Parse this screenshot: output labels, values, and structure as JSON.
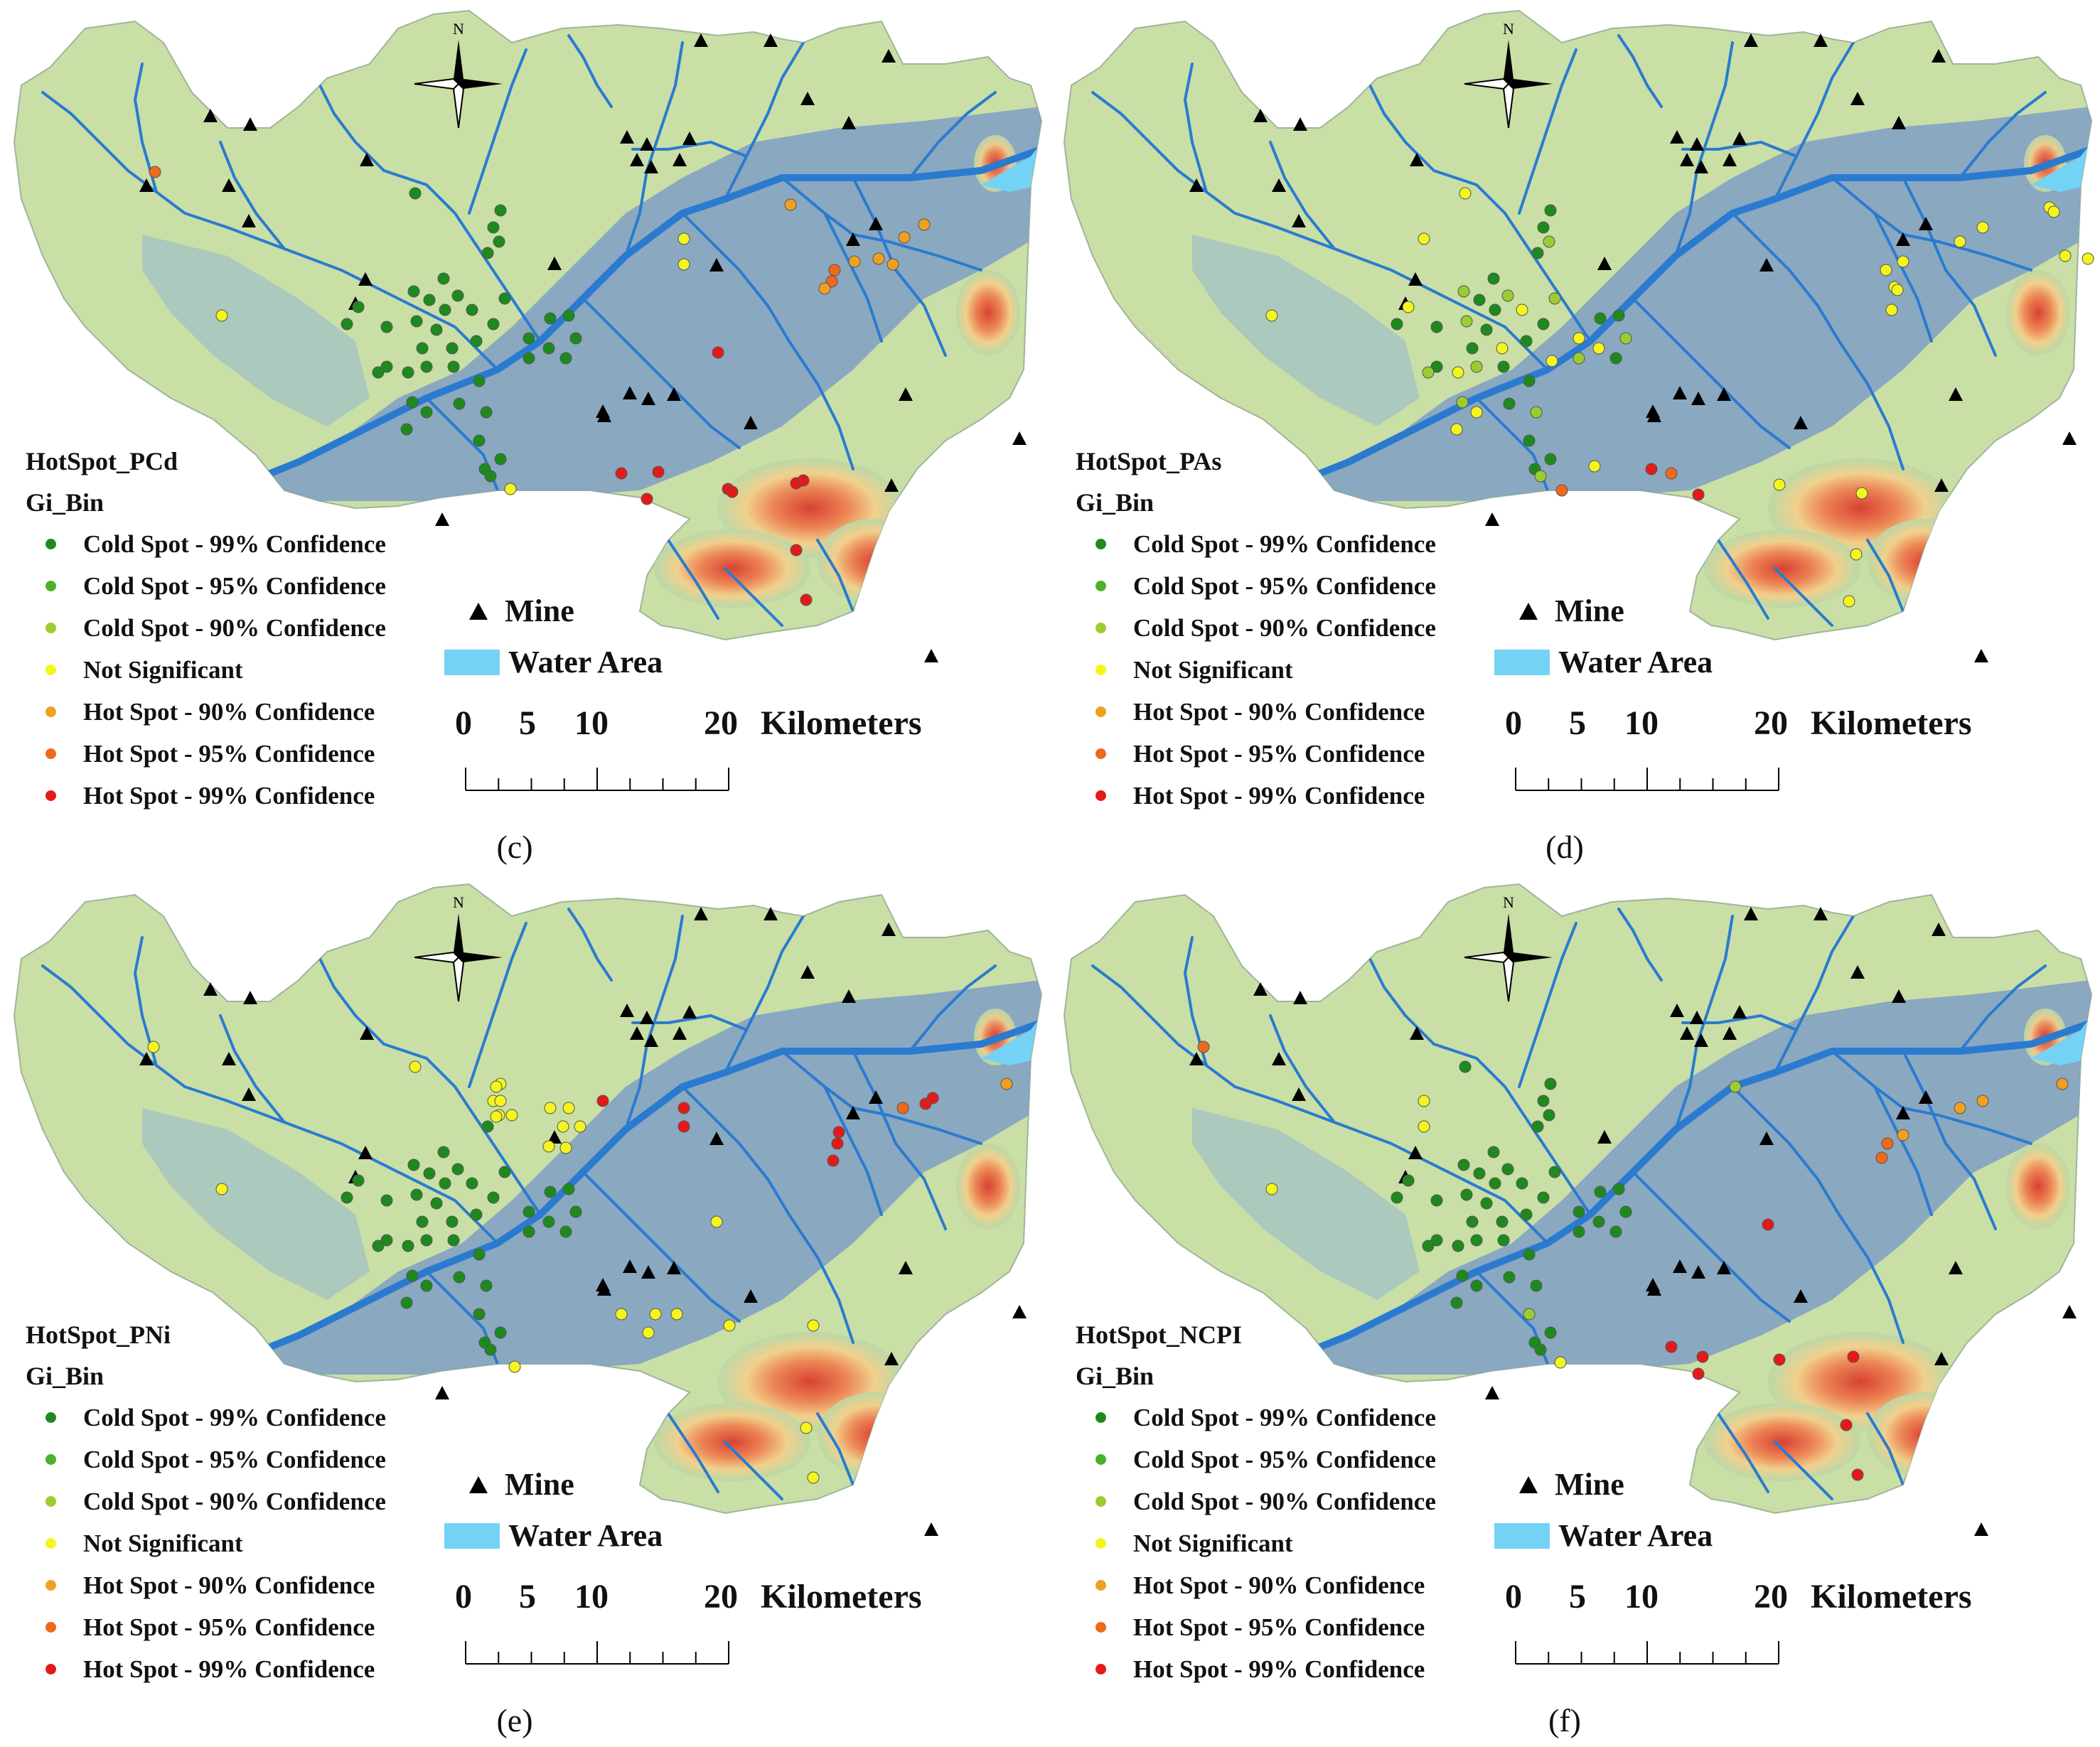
{
  "north_label": "N",
  "legend": {
    "subtitle": "Gi_Bin",
    "items": [
      {
        "label": "Cold Spot - 99% Confidence",
        "color": "#1e8a1e"
      },
      {
        "label": "Cold Spot - 95% Confidence",
        "color": "#4cb02a"
      },
      {
        "label": "Cold Spot - 90% Confidence",
        "color": "#9acd32"
      },
      {
        "label": "Not Significant",
        "color": "#f5f51e"
      },
      {
        "label": "Hot Spot - 90% Confidence",
        "color": "#f0a020"
      },
      {
        "label": "Hot Spot - 95% Confidence",
        "color": "#ee6a1a"
      },
      {
        "label": "Hot Spot - 99% Confidence",
        "color": "#e41a1a"
      }
    ]
  },
  "mine_label": "Mine",
  "water_label": "Water Area",
  "scale": {
    "ticks": [
      "0",
      "5",
      "10",
      "20"
    ],
    "unit": "Kilometers"
  },
  "panels": [
    {
      "id": "c",
      "caption": "(c)",
      "title": "HotSpot_PCd"
    },
    {
      "id": "d",
      "caption": "(d)",
      "title": "HotSpot_PAs"
    },
    {
      "id": "e",
      "caption": "(e)",
      "title": "HotSpot_PNi"
    },
    {
      "id": "f",
      "caption": "(f)",
      "title": "HotSpot_NCPI"
    }
  ],
  "colors": {
    "water": "#74d2f4",
    "river": "#2a7bd0",
    "lowland": "#7f9fc4",
    "highland": "#e8594a",
    "mine": "#000000"
  }
}
